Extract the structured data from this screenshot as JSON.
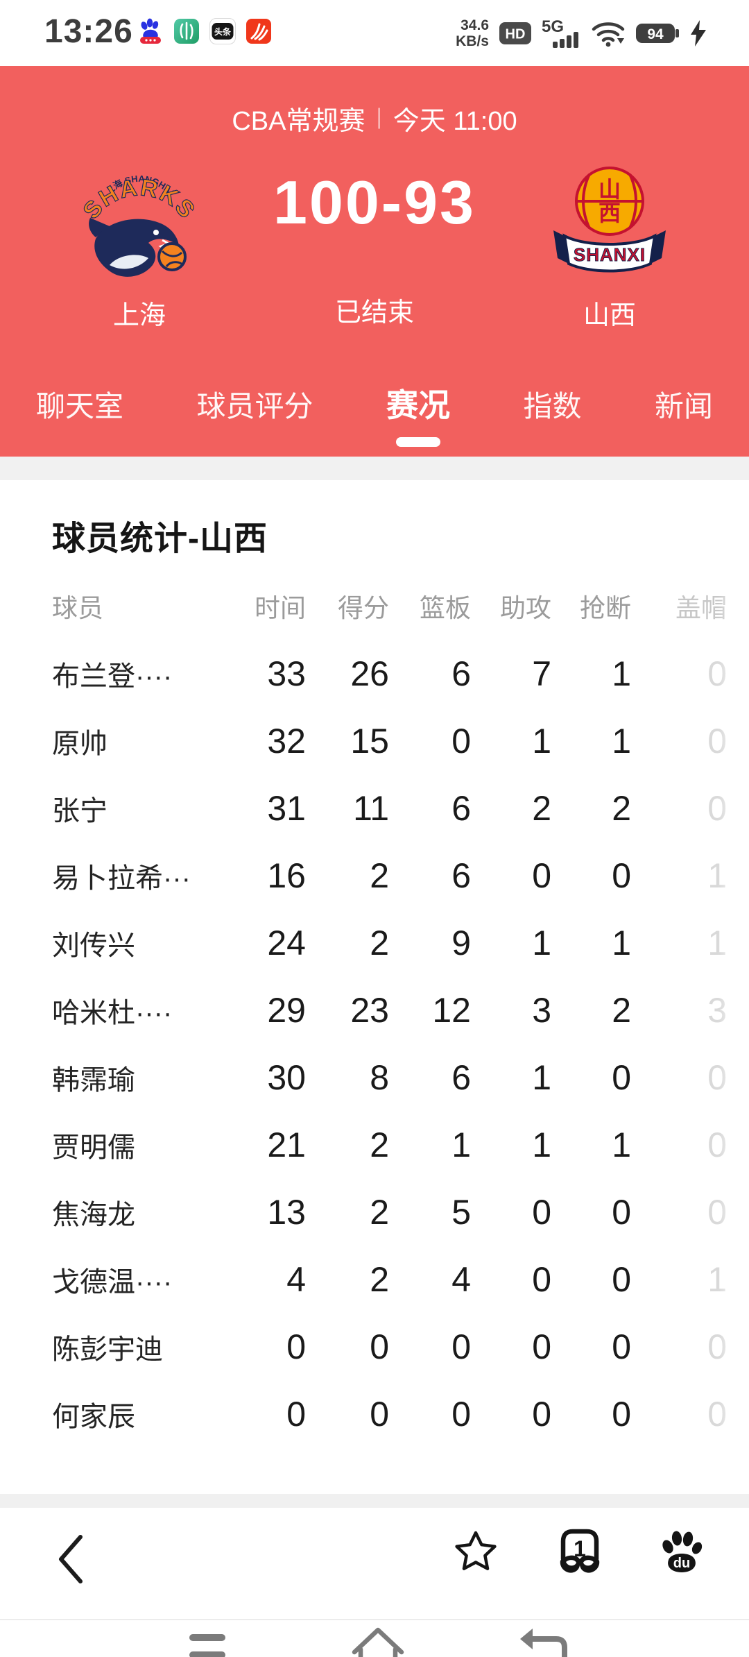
{
  "status_bar": {
    "time": "13:26",
    "network_speed_value": "34.6",
    "network_speed_unit": "KB/s",
    "hd_badge": "HD",
    "network_type": "5G",
    "battery_percent": "94",
    "toutiao_label": "头条"
  },
  "match_header": {
    "league_label": "CBA常规赛",
    "separator": "|",
    "start_time": "今天 11:00",
    "score": "100-93",
    "status": "已结束",
    "home_team": {
      "name": "上海",
      "logo_primary": "SHARKS",
      "logo_secondary": "上海 SHANGHAI"
    },
    "away_team": {
      "name": "山西",
      "logo_primary": "SHANXI",
      "logo_emblem_top": "山",
      "logo_emblem_bottom": "西"
    }
  },
  "tabs": [
    {
      "label": "聊天室",
      "active": false
    },
    {
      "label": "球员评分",
      "active": false
    },
    {
      "label": "赛况",
      "active": true
    },
    {
      "label": "指数",
      "active": false
    },
    {
      "label": "新闻",
      "active": false
    }
  ],
  "stats": {
    "title": "球员统计-山西",
    "columns": [
      "球员",
      "时间",
      "得分",
      "篮板",
      "助攻",
      "抢断",
      "盖帽"
    ],
    "players": [
      {
        "name": "布兰登····",
        "values": [
          "33",
          "26",
          "6",
          "7",
          "1",
          "0"
        ]
      },
      {
        "name": "原帅",
        "values": [
          "32",
          "15",
          "0",
          "1",
          "1",
          "0"
        ]
      },
      {
        "name": "张宁",
        "values": [
          "31",
          "11",
          "6",
          "2",
          "2",
          "0"
        ]
      },
      {
        "name": "易卜拉希···",
        "values": [
          "16",
          "2",
          "6",
          "0",
          "0",
          "1"
        ]
      },
      {
        "name": "刘传兴",
        "values": [
          "24",
          "2",
          "9",
          "1",
          "1",
          "1"
        ]
      },
      {
        "name": "哈米杜····",
        "values": [
          "29",
          "23",
          "12",
          "3",
          "2",
          "3"
        ]
      },
      {
        "name": "韩霈瑜",
        "values": [
          "30",
          "8",
          "6",
          "1",
          "0",
          "0"
        ]
      },
      {
        "name": "贾明儒",
        "values": [
          "21",
          "2",
          "1",
          "1",
          "1",
          "0"
        ]
      },
      {
        "name": "焦海龙",
        "values": [
          "13",
          "2",
          "5",
          "0",
          "0",
          "0"
        ]
      },
      {
        "name": "戈德温····",
        "values": [
          "4",
          "2",
          "4",
          "0",
          "0",
          "1"
        ]
      },
      {
        "name": "陈彭宇迪",
        "values": [
          "0",
          "0",
          "0",
          "0",
          "0",
          "0"
        ]
      },
      {
        "name": "何家辰",
        "values": [
          "0",
          "0",
          "0",
          "0",
          "0",
          "0"
        ]
      }
    ]
  },
  "bottom_toolbar": {
    "tab_count": "1",
    "paw_label": "du"
  },
  "colors": {
    "header_red": "#F2605E",
    "active_text": "#FFFFFF",
    "table_header_gray": "#9B9B9B",
    "faded_column": "#D9D9D9"
  }
}
